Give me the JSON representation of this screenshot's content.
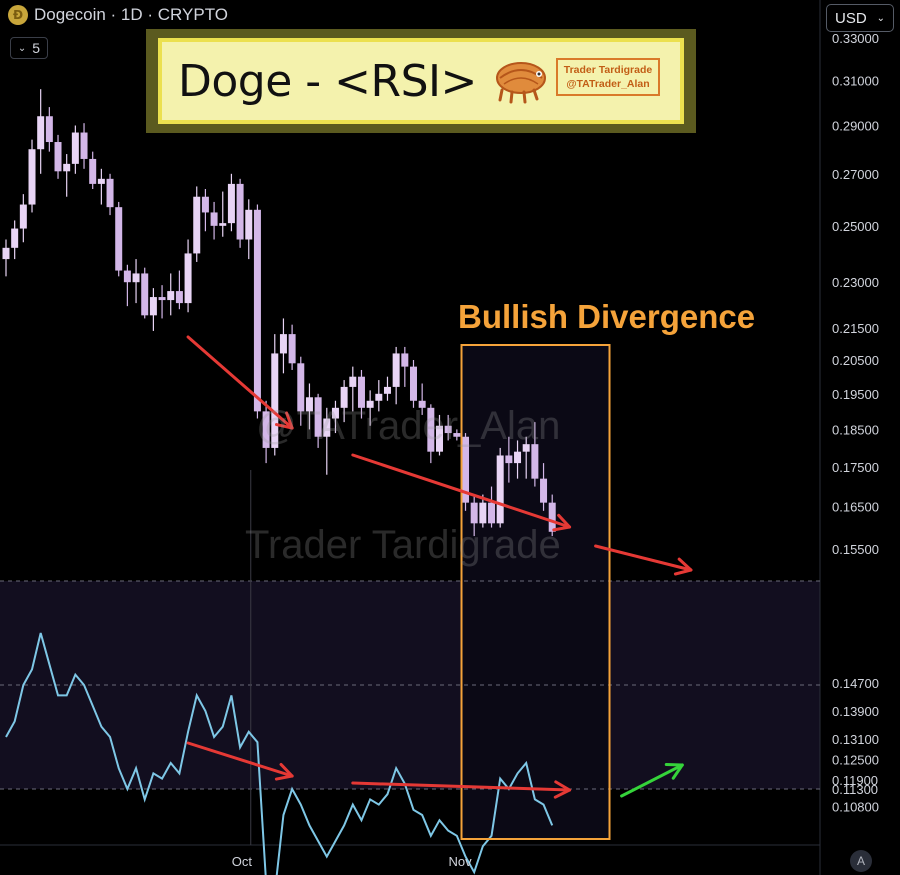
{
  "header": {
    "symbol_title": "Dogecoin · 1D · CRYPTO",
    "interval_value": "5",
    "currency": "USD",
    "auto_scale_label": "A"
  },
  "overlay": {
    "title": "Doge - <RSI>",
    "brand_name": "Trader Tardigrade",
    "brand_handle": "@TATrader_Alan",
    "annotation": "Bullish Divergence",
    "watermark_handle": "@TATrader_Alan",
    "watermark_name": "Trader Tardigrade"
  },
  "colors": {
    "candle_up": "#e8d4f5",
    "candle_down": "#d3b7e8",
    "rsi_line": "#7ec7e6",
    "arrow_red": "#e53935",
    "arrow_green": "#35d43a",
    "highlight_box": "#f5a33a",
    "title_frame": "#ebe04f"
  },
  "chart_data": {
    "type": "candlestick",
    "title": "Doge - <RSI>",
    "symbol": "Dogecoin",
    "interval": "1D",
    "y_scale": "log",
    "y_axis_ticks": [
      "0.33000",
      "0.31000",
      "0.29000",
      "0.27000",
      "0.25000",
      "0.23000",
      "0.21500",
      "0.20500",
      "0.19500",
      "0.18500",
      "0.17500",
      "0.16500",
      "0.15500",
      "0.14700",
      "0.13900",
      "0.13100",
      "0.12500",
      "0.11900",
      "0.11300",
      "0.10800"
    ],
    "x_axis_ticks": [
      "Oct",
      "Nov"
    ],
    "ohlc": [
      [
        0.238,
        0.245,
        0.232,
        0.242
      ],
      [
        0.242,
        0.252,
        0.238,
        0.249
      ],
      [
        0.249,
        0.262,
        0.244,
        0.258
      ],
      [
        0.258,
        0.284,
        0.255,
        0.28
      ],
      [
        0.28,
        0.306,
        0.27,
        0.294
      ],
      [
        0.294,
        0.298,
        0.279,
        0.283
      ],
      [
        0.283,
        0.286,
        0.268,
        0.271
      ],
      [
        0.271,
        0.278,
        0.261,
        0.274
      ],
      [
        0.274,
        0.29,
        0.27,
        0.287
      ],
      [
        0.287,
        0.291,
        0.272,
        0.276
      ],
      [
        0.276,
        0.279,
        0.264,
        0.266
      ],
      [
        0.266,
        0.272,
        0.258,
        0.268
      ],
      [
        0.268,
        0.27,
        0.254,
        0.257
      ],
      [
        0.257,
        0.259,
        0.232,
        0.234
      ],
      [
        0.234,
        0.236,
        0.222,
        0.23
      ],
      [
        0.23,
        0.238,
        0.223,
        0.233
      ],
      [
        0.233,
        0.235,
        0.218,
        0.219
      ],
      [
        0.219,
        0.228,
        0.214,
        0.225
      ],
      [
        0.225,
        0.229,
        0.218,
        0.224
      ],
      [
        0.224,
        0.233,
        0.219,
        0.227
      ],
      [
        0.227,
        0.234,
        0.221,
        0.223
      ],
      [
        0.223,
        0.245,
        0.22,
        0.24
      ],
      [
        0.24,
        0.265,
        0.237,
        0.261
      ],
      [
        0.261,
        0.264,
        0.248,
        0.255
      ],
      [
        0.255,
        0.259,
        0.245,
        0.25
      ],
      [
        0.25,
        0.263,
        0.246,
        0.251
      ],
      [
        0.251,
        0.27,
        0.248,
        0.266
      ],
      [
        0.266,
        0.268,
        0.242,
        0.245
      ],
      [
        0.245,
        0.26,
        0.238,
        0.256
      ],
      [
        0.256,
        0.258,
        0.188,
        0.19
      ],
      [
        0.19,
        0.193,
        0.176,
        0.18
      ],
      [
        0.18,
        0.213,
        0.178,
        0.207
      ],
      [
        0.207,
        0.218,
        0.201,
        0.213
      ],
      [
        0.213,
        0.216,
        0.202,
        0.204
      ],
      [
        0.204,
        0.206,
        0.186,
        0.19
      ],
      [
        0.19,
        0.198,
        0.185,
        0.194
      ],
      [
        0.194,
        0.195,
        0.18,
        0.183
      ],
      [
        0.183,
        0.191,
        0.173,
        0.188
      ],
      [
        0.188,
        0.193,
        0.184,
        0.191
      ],
      [
        0.191,
        0.199,
        0.187,
        0.197
      ],
      [
        0.197,
        0.203,
        0.19,
        0.2
      ],
      [
        0.2,
        0.202,
        0.188,
        0.191
      ],
      [
        0.191,
        0.196,
        0.186,
        0.193
      ],
      [
        0.193,
        0.199,
        0.19,
        0.195
      ],
      [
        0.195,
        0.2,
        0.193,
        0.197
      ],
      [
        0.197,
        0.209,
        0.192,
        0.207
      ],
      [
        0.207,
        0.209,
        0.197,
        0.203
      ],
      [
        0.203,
        0.205,
        0.191,
        0.193
      ],
      [
        0.193,
        0.198,
        0.189,
        0.191
      ],
      [
        0.191,
        0.192,
        0.176,
        0.179
      ],
      [
        0.179,
        0.189,
        0.178,
        0.186
      ],
      [
        0.186,
        0.189,
        0.182,
        0.184
      ],
      [
        0.184,
        0.185,
        0.182,
        0.183
      ],
      [
        0.183,
        0.184,
        0.164,
        0.166
      ],
      [
        0.166,
        0.168,
        0.158,
        0.161
      ],
      [
        0.161,
        0.168,
        0.16,
        0.166
      ],
      [
        0.166,
        0.17,
        0.16,
        0.161
      ],
      [
        0.161,
        0.18,
        0.16,
        0.178
      ],
      [
        0.178,
        0.183,
        0.171,
        0.176
      ],
      [
        0.176,
        0.182,
        0.172,
        0.179
      ],
      [
        0.179,
        0.183,
        0.172,
        0.181
      ],
      [
        0.181,
        0.187,
        0.17,
        0.172
      ],
      [
        0.172,
        0.176,
        0.164,
        0.166
      ],
      [
        0.166,
        0.168,
        0.158,
        0.159
      ]
    ],
    "rsi": [
      40,
      43,
      50,
      53,
      60,
      54,
      48,
      48,
      52,
      50,
      46,
      42,
      40,
      34,
      30,
      34,
      28,
      33,
      32,
      35,
      33,
      41,
      48,
      45,
      40,
      42,
      48,
      38,
      41,
      39,
      12,
      10,
      25,
      30,
      27,
      23,
      20,
      17,
      20,
      23,
      27,
      24,
      28,
      27,
      29,
      34,
      31,
      26,
      25,
      21,
      24,
      22,
      21,
      17,
      14,
      19,
      21,
      32,
      30,
      33,
      35,
      28,
      27,
      23
    ],
    "oct_index": 28,
    "nov_index": 53,
    "rsi_levels": [
      70,
      50,
      30
    ],
    "annotation": "Bullish Divergence"
  }
}
